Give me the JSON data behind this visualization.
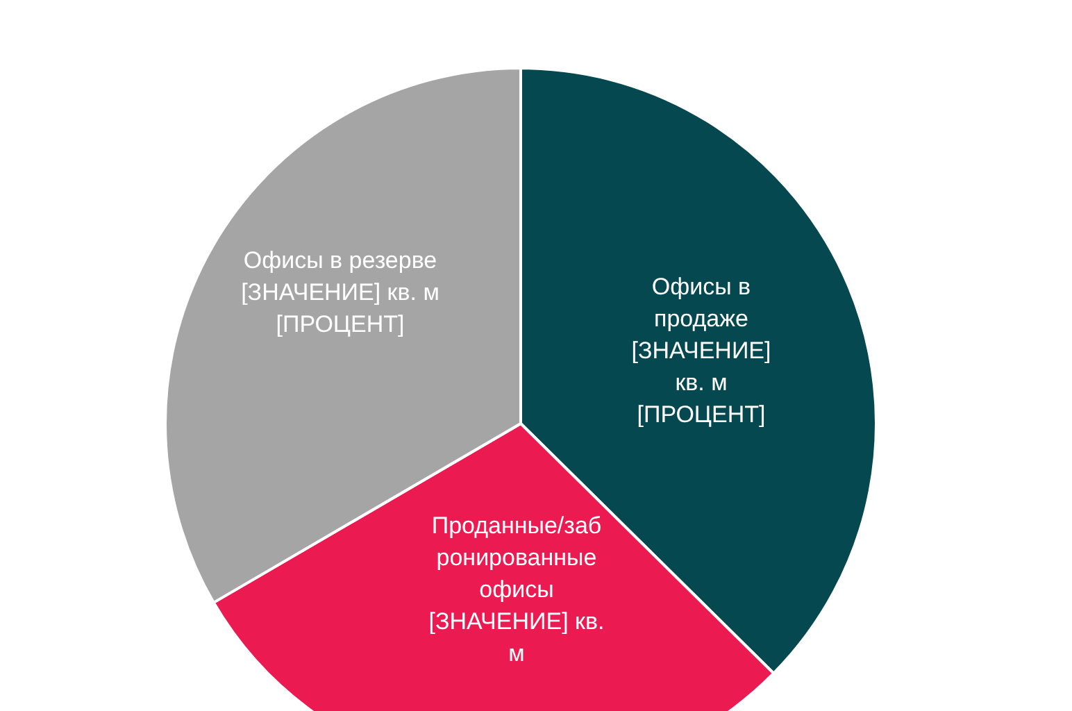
{
  "chart_data": {
    "type": "pie",
    "categories": [
      "Офисы в продаже",
      "Проданные/забронированные офисы",
      "Офисы в резерве"
    ],
    "values": [
      37.4,
      29.2,
      33.4
    ],
    "colors": [
      "#054850",
      "#eb1a51",
      "#a5a5a5"
    ],
    "value_labels": [
      "[ЗНАЧЕНИЕ] кв. м [ПРОЦЕНТ]",
      "[ЗНАЧЕНИЕ] кв. м",
      "[ЗНАЧЕНИЕ] кв. м [ПРОЦЕНТ]"
    ],
    "legend": false
  }
}
